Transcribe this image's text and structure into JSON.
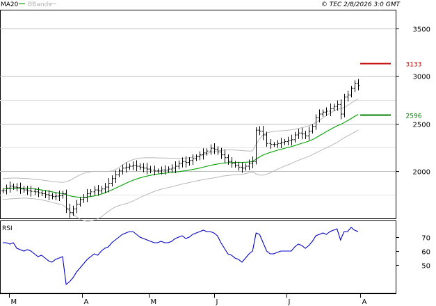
{
  "header": {
    "legend_ma": "MA20",
    "legend_bb": "BBands",
    "stamp": "© TEC 2/8/2026 3:0 GMT"
  },
  "rsi": {
    "label": "RSI"
  },
  "colors": {
    "price": "#000000",
    "ma": "#00a000",
    "bands": "#b8b8b8",
    "rsi": "#0000c0",
    "resistance": "#c00000",
    "support": "#008000",
    "grid": "#bdbdbd"
  },
  "chart_data": [
    {
      "type": "ohlc",
      "title": "",
      "x_month_labels": [
        "M",
        "A",
        "M",
        "J",
        "J",
        "A"
      ],
      "y_ticks": [
        2000,
        2500,
        3000,
        3500
      ],
      "y_tick_labels": [
        "2000",
        "2500",
        "3000",
        "3500"
      ],
      "ylim": [
        1500,
        3700
      ],
      "grid": true,
      "legend": "top-left",
      "levels": [
        {
          "name": "resistance",
          "value": 3133,
          "label": "3133"
        },
        {
          "name": "support",
          "value": 2596,
          "label": "2596"
        }
      ],
      "close": [
        1790,
        1820,
        1840,
        1830,
        1825,
        1810,
        1800,
        1790,
        1785,
        1780,
        1770,
        1760,
        1750,
        1740,
        1730,
        1735,
        1740,
        1760,
        1600,
        1560,
        1600,
        1650,
        1700,
        1720,
        1760,
        1780,
        1800,
        1790,
        1810,
        1830,
        1870,
        1920,
        1960,
        2000,
        2030,
        2040,
        2050,
        2060,
        2050,
        2040,
        2030,
        2020,
        2010,
        2000,
        2000,
        2010,
        2010,
        2020,
        2030,
        2050,
        2080,
        2100,
        2090,
        2110,
        2130,
        2150,
        2170,
        2190,
        2210,
        2240,
        2230,
        2200,
        2170,
        2140,
        2100,
        2080,
        2060,
        2040,
        2030,
        2050,
        2080,
        2100,
        2430,
        2420,
        2380,
        2290,
        2280,
        2280,
        2290,
        2300,
        2310,
        2320,
        2330,
        2380,
        2400,
        2390,
        2370,
        2420,
        2470,
        2560,
        2600,
        2620,
        2630,
        2660,
        2680,
        2700,
        2600,
        2780,
        2800,
        2870,
        2920,
        2900
      ],
      "ma20": [
        1810,
        1812,
        1815,
        1817,
        1818,
        1818,
        1818,
        1816,
        1813,
        1810,
        1805,
        1800,
        1794,
        1787,
        1780,
        1773,
        1766,
        1760,
        1750,
        1738,
        1730,
        1725,
        1722,
        1722,
        1725,
        1730,
        1736,
        1745,
        1756,
        1769,
        1784,
        1800,
        1817,
        1835,
        1852,
        1870,
        1886,
        1902,
        1915,
        1927,
        1937,
        1946,
        1954,
        1961,
        1967,
        1972,
        1976,
        1980,
        1984,
        1988,
        1992,
        1998,
        2003,
        2009,
        2016,
        2023,
        2031,
        2040,
        2049,
        2058,
        2066,
        2073,
        2079,
        2084,
        2087,
        2089,
        2090,
        2090,
        2090,
        2092,
        2095,
        2100,
        2125,
        2148,
        2168,
        2182,
        2195,
        2207,
        2218,
        2228,
        2238,
        2247,
        2256,
        2268,
        2280,
        2291,
        2302,
        2315,
        2330,
        2350,
        2372,
        2394,
        2415,
        2436,
        2456,
        2475,
        2490,
        2510,
        2530,
        2552,
        2575,
        2596
      ],
      "bb_upper": [
        1920,
        1922,
        1924,
        1925,
        1925,
        1924,
        1922,
        1920,
        1917,
        1913,
        1909,
        1905,
        1900,
        1895,
        1890,
        1886,
        1882,
        1880,
        1885,
        1900,
        1920,
        1940,
        1960,
        1975,
        1985,
        1992,
        1995,
        1996,
        1995,
        1994,
        1995,
        2000,
        2015,
        2035,
        2060,
        2085,
        2105,
        2120,
        2130,
        2135,
        2138,
        2140,
        2140,
        2139,
        2138,
        2137,
        2136,
        2135,
        2134,
        2133,
        2133,
        2134,
        2136,
        2140,
        2145,
        2152,
        2160,
        2170,
        2182,
        2195,
        2205,
        2212,
        2217,
        2220,
        2222,
        2222,
        2220,
        2218,
        2215,
        2212,
        2210,
        2212,
        2280,
        2340,
        2380,
        2400,
        2410,
        2416,
        2420,
        2423,
        2426,
        2430,
        2434,
        2440,
        2448,
        2456,
        2465,
        2475,
        2490,
        2510,
        2535,
        2560,
        2585,
        2610,
        2630,
        2650,
        2655,
        2670,
        2690,
        2715,
        2740,
        2760
      ],
      "bb_lower": [
        1700,
        1702,
        1705,
        1708,
        1710,
        1712,
        1714,
        1712,
        1709,
        1707,
        1701,
        1695,
        1688,
        1679,
        1670,
        1660,
        1650,
        1640,
        1615,
        1580,
        1545,
        1515,
        1490,
        1475,
        1470,
        1472,
        1480,
        1495,
        1515,
        1545,
        1575,
        1600,
        1620,
        1635,
        1645,
        1655,
        1667,
        1684,
        1700,
        1719,
        1736,
        1752,
        1768,
        1783,
        1796,
        1807,
        1816,
        1825,
        1834,
        1843,
        1851,
        1862,
        1870,
        1878,
        1887,
        1894,
        1902,
        1910,
        1916,
        1921,
        1927,
        1934,
        1941,
        1948,
        1952,
        1956,
        1960,
        1962,
        1965,
        1972,
        1980,
        1988,
        1970,
        1956,
        1956,
        1964,
        1980,
        1998,
        2016,
        2033,
        2050,
        2064,
        2078,
        2096,
        2112,
        2126,
        2139,
        2155,
        2170,
        2190,
        2209,
        2228,
        2245,
        2262,
        2282,
        2300,
        2325,
        2350,
        2370,
        2389,
        2410,
        2432
      ]
    },
    {
      "type": "line",
      "name": "RSI",
      "title": "",
      "y_ticks": [
        50,
        60,
        70
      ],
      "y_tick_labels": [
        "50",
        "60",
        "70"
      ],
      "ylim": [
        30,
        82
      ],
      "values": [
        66,
        66,
        65,
        66,
        62,
        61,
        60,
        61,
        60,
        58,
        56,
        57,
        55,
        53,
        52,
        54,
        55,
        56,
        36,
        38,
        41,
        45,
        48,
        51,
        54,
        56,
        58,
        57,
        60,
        62,
        63,
        66,
        68,
        70,
        72,
        73,
        74,
        74,
        72,
        70,
        69,
        68,
        67,
        66,
        66,
        67,
        66,
        66,
        67,
        69,
        70,
        71,
        69,
        70,
        72,
        73,
        74,
        75,
        74,
        74,
        73,
        71,
        66,
        62,
        58,
        57,
        55,
        54,
        52,
        55,
        58,
        60,
        73,
        72,
        66,
        60,
        58,
        58,
        59,
        60,
        60,
        60,
        60,
        63,
        65,
        64,
        62,
        64,
        67,
        71,
        72,
        73,
        72,
        74,
        75,
        76,
        68,
        74,
        74,
        77,
        75,
        74
      ]
    }
  ]
}
